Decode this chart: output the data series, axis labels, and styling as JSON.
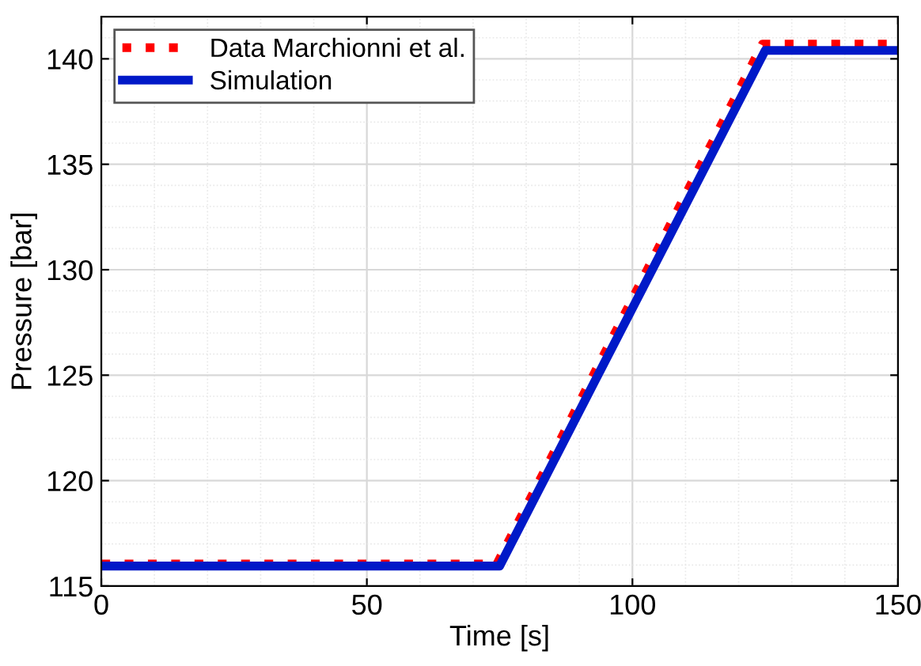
{
  "chart_data": {
    "type": "line",
    "xlabel": "Time [s]",
    "ylabel": "Pressure [bar]",
    "xlim": [
      0,
      150
    ],
    "xticks": [
      0,
      50,
      100,
      150
    ],
    "ylim": [
      115,
      142
    ],
    "yticks": [
      115,
      120,
      125,
      130,
      135,
      140
    ],
    "grid": true,
    "legend": "top left",
    "marker": "none",
    "series": [
      {
        "name": "Data Marchionni et al.",
        "color": "#ff0000",
        "line_style": "dotted",
        "x": [
          0,
          74.5,
          124.5,
          150
        ],
        "values": [
          116.05,
          116.05,
          140.7,
          140.7
        ]
      },
      {
        "name": "Simulation",
        "color": "#0019c8",
        "line_style": "solid",
        "x": [
          0,
          75,
          125,
          150
        ],
        "values": [
          115.95,
          115.95,
          140.4,
          140.4
        ]
      }
    ]
  }
}
